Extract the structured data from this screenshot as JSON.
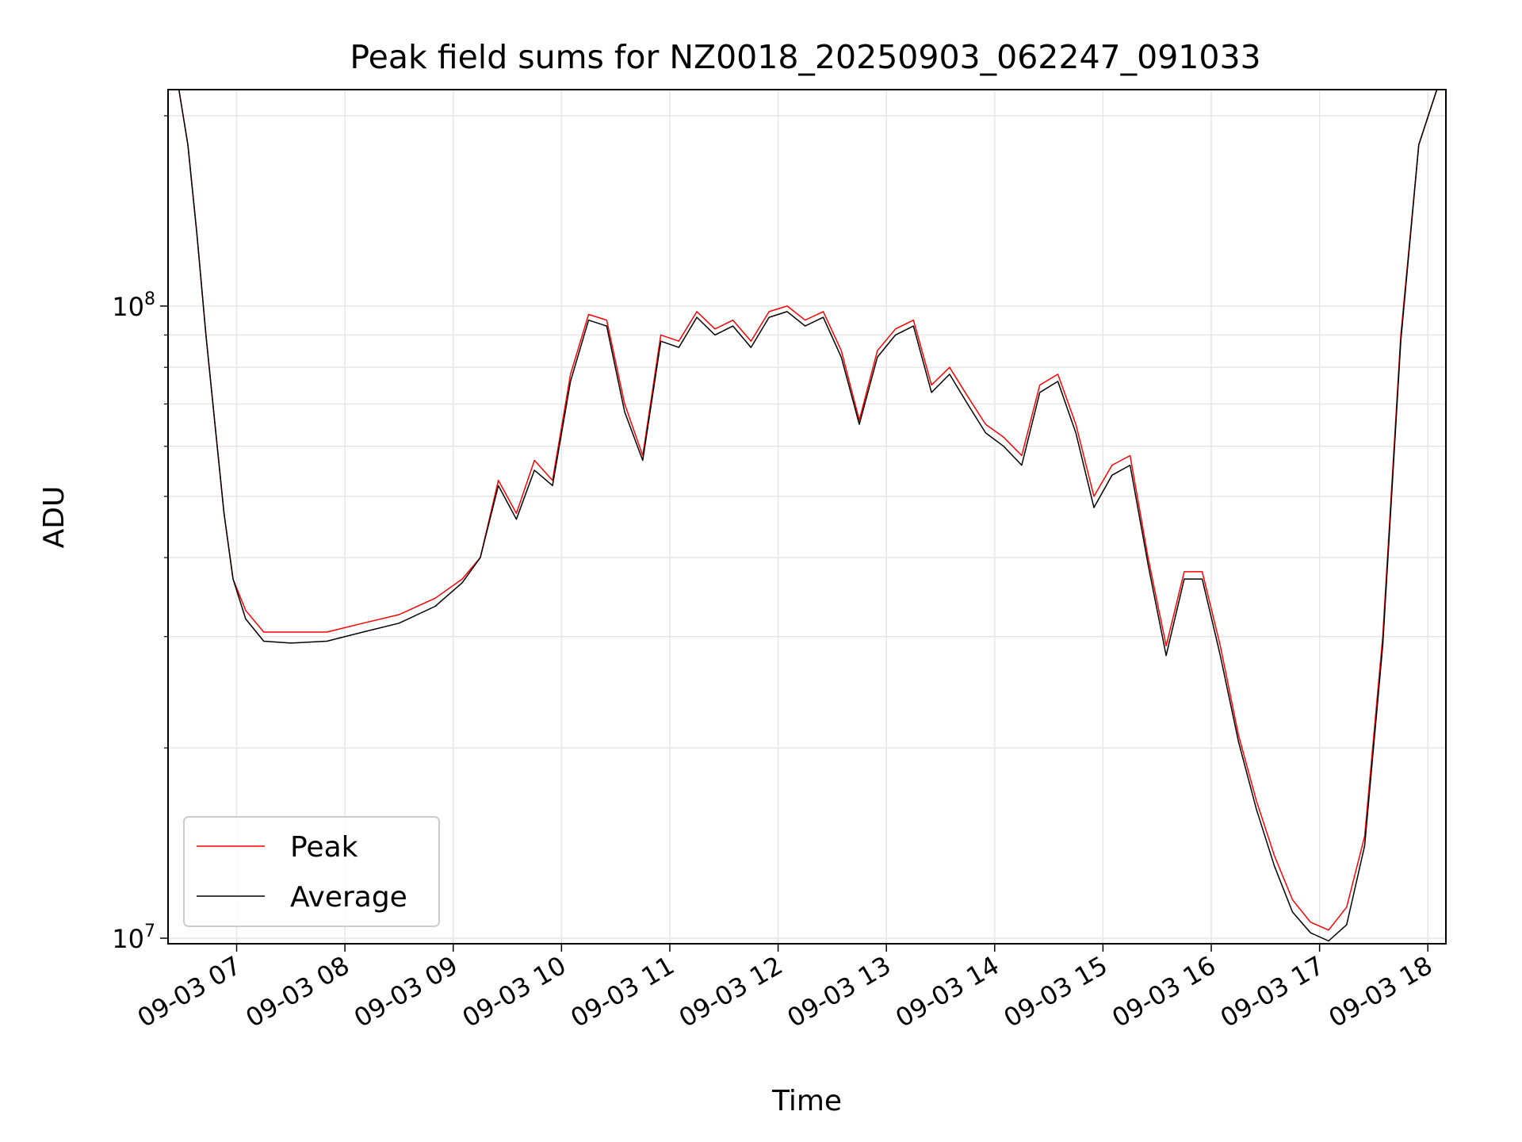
{
  "chart_data": {
    "type": "line",
    "title": "Peak field sums for NZ0018_20250903_062247_091033",
    "xlabel": "Time",
    "ylabel": "ADU",
    "yscale": "log",
    "ylim": [
      9800000,
      220000000
    ],
    "xlim": [
      "09-03 06:22",
      "09-03 18:10"
    ],
    "x_ticks": [
      "09-03 07",
      "09-03 08",
      "09-03 09",
      "09-03 10",
      "09-03 11",
      "09-03 12",
      "09-03 13",
      "09-03 14",
      "09-03 15",
      "09-03 16",
      "09-03 17",
      "09-03 18"
    ],
    "y_ticks": [
      {
        "value": 10000000,
        "mantissa": "10",
        "exponent": "7"
      },
      {
        "value": 100000000,
        "mantissa": "10",
        "exponent": "8"
      }
    ],
    "grid": true,
    "legend_position": "lower-left",
    "series": [
      {
        "name": "Peak",
        "color": "#ff0000",
        "points": [
          [
            "09-03 06:28",
            220000000
          ],
          [
            "09-03 06:33",
            180000000
          ],
          [
            "09-03 06:38",
            130000000
          ],
          [
            "09-03 06:43",
            90000000
          ],
          [
            "09-03 06:48",
            65000000
          ],
          [
            "09-03 06:53",
            47000000
          ],
          [
            "09-03 06:58",
            37000000
          ],
          [
            "09-03 07:05",
            33000000
          ],
          [
            "09-03 07:15",
            30500000
          ],
          [
            "09-03 07:30",
            30500000
          ],
          [
            "09-03 07:50",
            30500000
          ],
          [
            "09-03 08:10",
            31500000
          ],
          [
            "09-03 08:30",
            32500000
          ],
          [
            "09-03 08:50",
            34500000
          ],
          [
            "09-03 09:05",
            37000000
          ],
          [
            "09-03 09:15",
            40000000
          ],
          [
            "09-03 09:25",
            53000000
          ],
          [
            "09-03 09:35",
            47000000
          ],
          [
            "09-03 09:45",
            57000000
          ],
          [
            "09-03 09:55",
            53000000
          ],
          [
            "09-03 10:05",
            78000000
          ],
          [
            "09-03 10:15",
            97000000
          ],
          [
            "09-03 10:25",
            95000000
          ],
          [
            "09-03 10:35",
            70000000
          ],
          [
            "09-03 10:45",
            58000000
          ],
          [
            "09-03 10:55",
            90000000
          ],
          [
            "09-03 11:05",
            88000000
          ],
          [
            "09-03 11:15",
            98000000
          ],
          [
            "09-03 11:25",
            92000000
          ],
          [
            "09-03 11:35",
            95000000
          ],
          [
            "09-03 11:45",
            88000000
          ],
          [
            "09-03 11:55",
            98000000
          ],
          [
            "09-03 12:05",
            100000000
          ],
          [
            "09-03 12:15",
            95000000
          ],
          [
            "09-03 12:25",
            98000000
          ],
          [
            "09-03 12:35",
            85000000
          ],
          [
            "09-03 12:45",
            66000000
          ],
          [
            "09-03 12:55",
            85000000
          ],
          [
            "09-03 13:05",
            92000000
          ],
          [
            "09-03 13:15",
            95000000
          ],
          [
            "09-03 13:25",
            75000000
          ],
          [
            "09-03 13:35",
            80000000
          ],
          [
            "09-03 13:45",
            72000000
          ],
          [
            "09-03 13:55",
            65000000
          ],
          [
            "09-03 14:05",
            62000000
          ],
          [
            "09-03 14:15",
            58000000
          ],
          [
            "09-03 14:25",
            75000000
          ],
          [
            "09-03 14:35",
            78000000
          ],
          [
            "09-03 14:45",
            65000000
          ],
          [
            "09-03 14:55",
            50000000
          ],
          [
            "09-03 15:05",
            56000000
          ],
          [
            "09-03 15:15",
            58000000
          ],
          [
            "09-03 15:25",
            40000000
          ],
          [
            "09-03 15:35",
            29000000
          ],
          [
            "09-03 15:45",
            38000000
          ],
          [
            "09-03 15:55",
            38000000
          ],
          [
            "09-03 16:05",
            29000000
          ],
          [
            "09-03 16:15",
            21000000
          ],
          [
            "09-03 16:25",
            16500000
          ],
          [
            "09-03 16:35",
            13500000
          ],
          [
            "09-03 16:45",
            11500000
          ],
          [
            "09-03 16:55",
            10600000
          ],
          [
            "09-03 17:05",
            10300000
          ],
          [
            "09-03 17:15",
            11200000
          ],
          [
            "09-03 17:25",
            14500000
          ],
          [
            "09-03 17:35",
            30000000
          ],
          [
            "09-03 17:45",
            90000000
          ],
          [
            "09-03 17:55",
            180000000
          ],
          [
            "09-03 18:05",
            220000000
          ]
        ]
      },
      {
        "name": "Average",
        "color": "#000000",
        "points": [
          [
            "09-03 06:28",
            220000000
          ],
          [
            "09-03 06:33",
            180000000
          ],
          [
            "09-03 06:38",
            130000000
          ],
          [
            "09-03 06:43",
            90000000
          ],
          [
            "09-03 06:48",
            65000000
          ],
          [
            "09-03 06:53",
            47000000
          ],
          [
            "09-03 06:58",
            37000000
          ],
          [
            "09-03 07:05",
            32000000
          ],
          [
            "09-03 07:15",
            29500000
          ],
          [
            "09-03 07:30",
            29300000
          ],
          [
            "09-03 07:50",
            29500000
          ],
          [
            "09-03 08:10",
            30500000
          ],
          [
            "09-03 08:30",
            31500000
          ],
          [
            "09-03 08:50",
            33500000
          ],
          [
            "09-03 09:05",
            36500000
          ],
          [
            "09-03 09:15",
            40000000
          ],
          [
            "09-03 09:25",
            52000000
          ],
          [
            "09-03 09:35",
            46000000
          ],
          [
            "09-03 09:45",
            55000000
          ],
          [
            "09-03 09:55",
            52000000
          ],
          [
            "09-03 10:05",
            76000000
          ],
          [
            "09-03 10:15",
            95000000
          ],
          [
            "09-03 10:25",
            93000000
          ],
          [
            "09-03 10:35",
            68000000
          ],
          [
            "09-03 10:45",
            57000000
          ],
          [
            "09-03 10:55",
            88000000
          ],
          [
            "09-03 11:05",
            86000000
          ],
          [
            "09-03 11:15",
            96000000
          ],
          [
            "09-03 11:25",
            90000000
          ],
          [
            "09-03 11:35",
            93000000
          ],
          [
            "09-03 11:45",
            86000000
          ],
          [
            "09-03 11:55",
            96000000
          ],
          [
            "09-03 12:05",
            98000000
          ],
          [
            "09-03 12:15",
            93000000
          ],
          [
            "09-03 12:25",
            96000000
          ],
          [
            "09-03 12:35",
            83000000
          ],
          [
            "09-03 12:45",
            65000000
          ],
          [
            "09-03 12:55",
            83000000
          ],
          [
            "09-03 13:05",
            90000000
          ],
          [
            "09-03 13:15",
            93000000
          ],
          [
            "09-03 13:25",
            73000000
          ],
          [
            "09-03 13:35",
            78000000
          ],
          [
            "09-03 13:45",
            70000000
          ],
          [
            "09-03 13:55",
            63000000
          ],
          [
            "09-03 14:05",
            60000000
          ],
          [
            "09-03 14:15",
            56000000
          ],
          [
            "09-03 14:25",
            73000000
          ],
          [
            "09-03 14:35",
            76000000
          ],
          [
            "09-03 14:45",
            63000000
          ],
          [
            "09-03 14:55",
            48000000
          ],
          [
            "09-03 15:05",
            54000000
          ],
          [
            "09-03 15:15",
            56000000
          ],
          [
            "09-03 15:25",
            39000000
          ],
          [
            "09-03 15:35",
            28000000
          ],
          [
            "09-03 15:45",
            37000000
          ],
          [
            "09-03 15:55",
            37000000
          ],
          [
            "09-03 16:05",
            28000000
          ],
          [
            "09-03 16:15",
            20500000
          ],
          [
            "09-03 16:25",
            16000000
          ],
          [
            "09-03 16:35",
            13000000
          ],
          [
            "09-03 16:45",
            11000000
          ],
          [
            "09-03 16:55",
            10200000
          ],
          [
            "09-03 17:05",
            9900000
          ],
          [
            "09-03 17:15",
            10500000
          ],
          [
            "09-03 17:25",
            14000000
          ],
          [
            "09-03 17:35",
            29000000
          ],
          [
            "09-03 17:45",
            88000000
          ],
          [
            "09-03 17:55",
            180000000
          ],
          [
            "09-03 18:05",
            220000000
          ]
        ]
      }
    ]
  }
}
